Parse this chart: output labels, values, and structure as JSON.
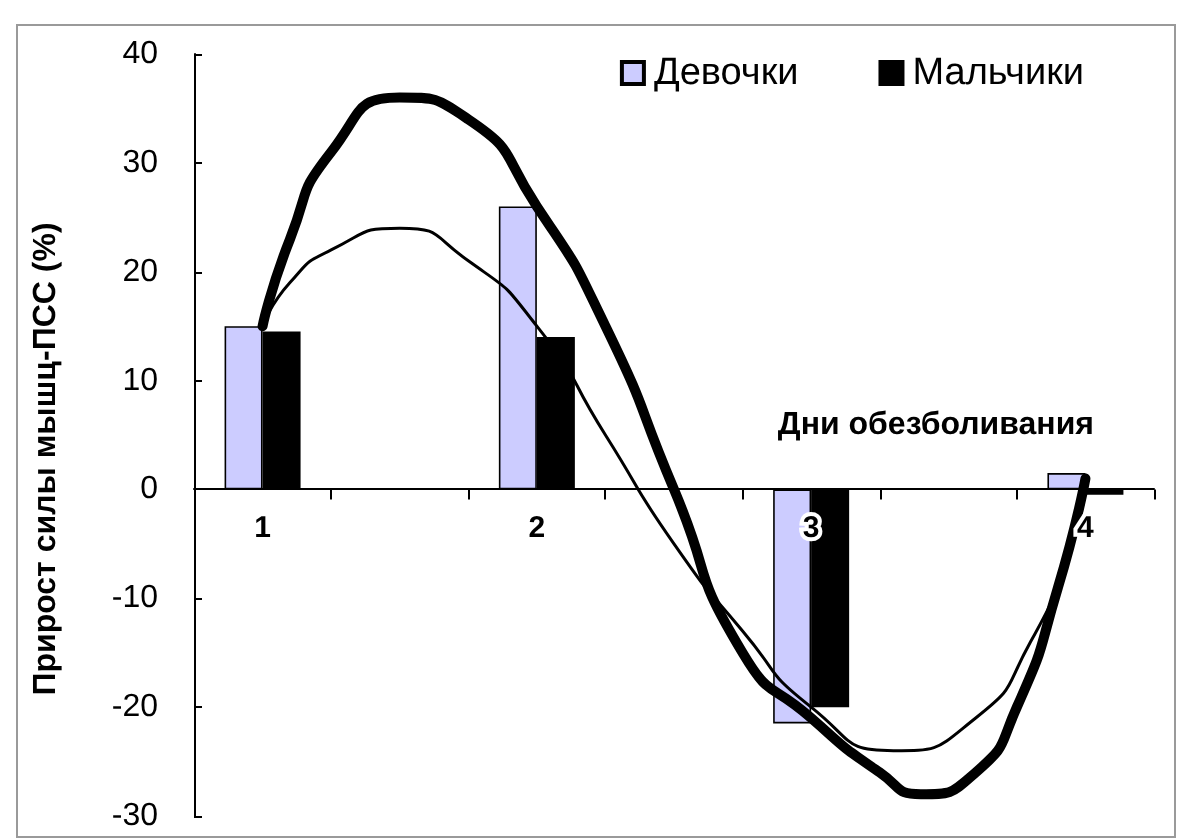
{
  "chart_data": {
    "type": "bar",
    "xlabel": "Дни обезболивания",
    "ylabel": "Прирост силы мышц-ПСС (%)",
    "x": [
      1,
      2,
      3,
      4
    ],
    "series": [
      {
        "name": "Девочки",
        "color": "#ccccff",
        "values": [
          15,
          26,
          -21.5,
          1.5
        ]
      },
      {
        "name": "Мальчики",
        "color": "#000000",
        "values": [
          14.5,
          14,
          -20,
          -0.5
        ]
      },
      {
        "type": "line",
        "color": "#000000",
        "x": [
          1,
          1.1,
          1.25,
          1.5,
          1.75,
          2,
          2.25,
          2.5,
          2.75,
          3,
          3.25,
          3.4,
          3.6,
          3.75,
          3.9,
          4
        ],
        "values": [
          15,
          23,
          31,
          36,
          34,
          26,
          15,
          0,
          -15,
          -21,
          -26,
          -28,
          -26,
          -20,
          -9,
          1
        ]
      },
      {
        "type": "line",
        "color": "#000000",
        "x": [
          1,
          1.1,
          1.25,
          1.5,
          1.75,
          2,
          2.25,
          2.5,
          2.75,
          3,
          3.3,
          3.6,
          3.8,
          3.95,
          4
        ],
        "values": [
          15,
          19,
          22,
          24,
          21,
          15,
          5,
          -5,
          -13,
          -20,
          -24,
          -21,
          -14,
          -5,
          0
        ]
      }
    ],
    "xlim": [
      0.75,
      4.25
    ],
    "xticks": [
      {
        "value": 0.75,
        "label": null
      },
      1,
      {
        "value": 1.25,
        "label": null
      },
      {
        "value": 1.75,
        "label": null
      },
      2,
      {
        "value": 2.25,
        "label": null
      },
      {
        "value": 2.75,
        "label": null
      },
      3,
      {
        "value": 3.25,
        "label": null
      },
      {
        "value": 3.75,
        "label": null
      },
      4,
      {
        "value": 4.25,
        "label": null
      }
    ],
    "ylim": [
      -30,
      40
    ],
    "yticks": [
      -30,
      -20,
      -10,
      0,
      10,
      20,
      30,
      40
    ],
    "legend": "top right",
    "marker": "none"
  }
}
